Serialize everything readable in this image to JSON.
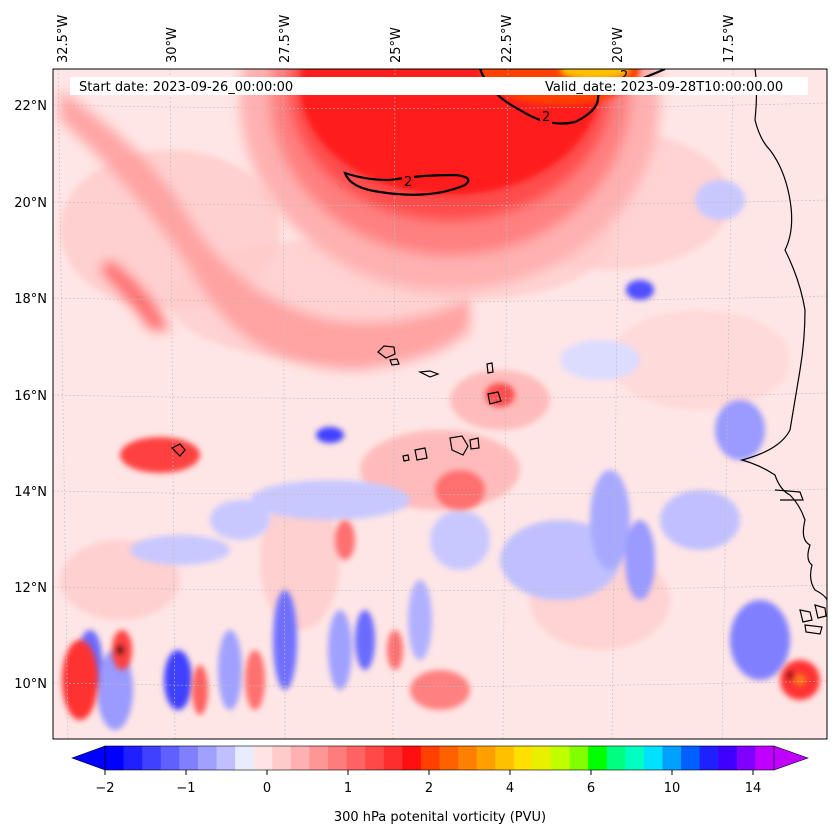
{
  "header": {
    "start_date": "Start date: 2023-09-26_00:00:00",
    "valid_date": "Valid_date: 2023-09-28T10:00:00.00"
  },
  "axes": {
    "longitude_labels": [
      "32.5°W",
      "30°W",
      "27.5°W",
      "25°W",
      "22.5°W",
      "20°W",
      "17.5°W"
    ],
    "latitude_labels": [
      "22°N",
      "20°N",
      "18°N",
      "16°N",
      "14°N",
      "12°N",
      "10°N"
    ]
  },
  "contour_labels": [
    "2",
    "2",
    "2"
  ],
  "colorbar": {
    "label": "300 hPa potenital vorticity (PVU)",
    "tick_labels": [
      "−2",
      "−1",
      "0",
      "1",
      "2",
      "4",
      "6",
      "10",
      "14"
    ],
    "colors": [
      "#0000ff",
      "#2020ff",
      "#4040ff",
      "#6060ff",
      "#8080ff",
      "#a0a0ff",
      "#c0c0ff",
      "#e8ecff",
      "#ffe4e4",
      "#ffcaca",
      "#ffb0b0",
      "#ff9696",
      "#ff7c7c",
      "#ff6262",
      "#ff4848",
      "#ff2e2e",
      "#ff1010",
      "#ff4000",
      "#ff6000",
      "#ff8000",
      "#ffa000",
      "#ffc000",
      "#ffe000",
      "#e8f000",
      "#c0ff00",
      "#80ff00",
      "#00ff00",
      "#00ff80",
      "#00ffc0",
      "#00e0ff",
      "#00a0ff",
      "#0060ff",
      "#2020ff",
      "#4000ff",
      "#8000ff",
      "#c000ff"
    ]
  },
  "colors": {
    "background_field": "#ffe6e6",
    "strong_max": "#ff0000",
    "coast": "#000000"
  }
}
